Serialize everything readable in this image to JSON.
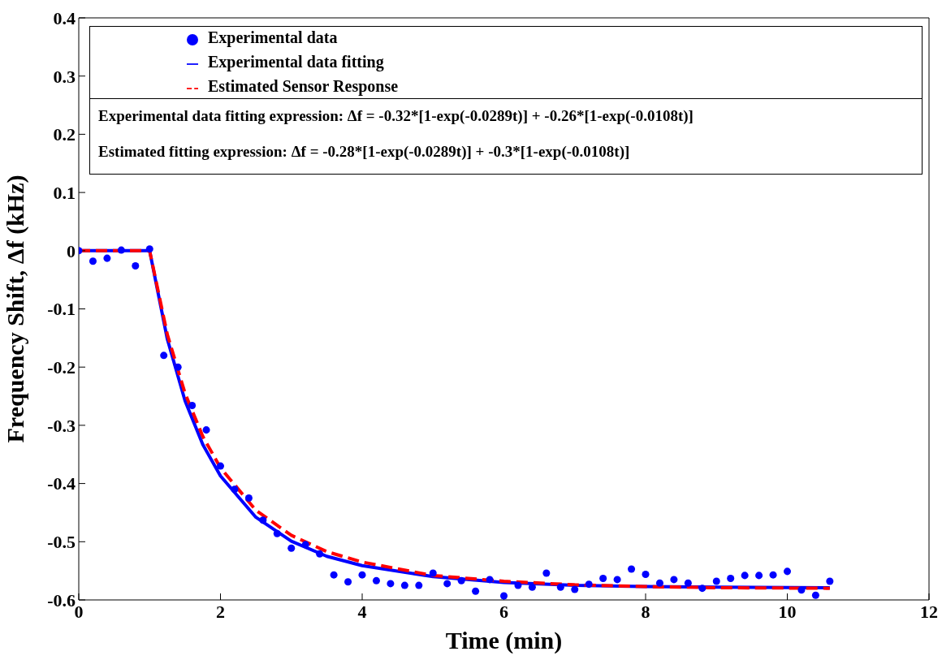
{
  "chart_data": {
    "type": "line",
    "xlabel": "Time (min)",
    "ylabel": "Frequency Shift, Δf (kHz)",
    "xlim": [
      0,
      12
    ],
    "xticks": [
      0,
      2,
      4,
      6,
      8,
      10,
      12
    ],
    "ylim": [
      -0.6,
      0.4
    ],
    "yticks": [
      -0.6,
      -0.5,
      -0.4,
      -0.3,
      -0.2,
      -0.1,
      0,
      0.1,
      0.2,
      0.3,
      0.4
    ],
    "grid": false,
    "legend": "top",
    "annotations": [
      "Experimental data fitting expression: Δf = -0.32*[1-exp(-0.0289t)] + -0.26*[1-exp(-0.0108t)]",
      "Estimated fitting expression: Δf = -0.28*[1-exp(-0.0289t)] + -0.3*[1-exp(-0.0108t)]"
    ],
    "series": [
      {
        "name": "Experimental data",
        "type": "scatter",
        "color": "#0000ff",
        "marker": "circle",
        "x": [
          0,
          0.2,
          0.4,
          0.6,
          0.8,
          1.0,
          1.2,
          1.4,
          1.6,
          1.8,
          2.0,
          2.2,
          2.4,
          2.6,
          2.8,
          3.0,
          3.2,
          3.4,
          3.6,
          3.8,
          4.0,
          4.2,
          4.4,
          4.6,
          4.8,
          5.0,
          5.2,
          5.4,
          5.6,
          5.8,
          6.0,
          6.2,
          6.4,
          6.6,
          6.8,
          7.0,
          7.2,
          7.4,
          7.6,
          7.8,
          8.0,
          8.2,
          8.4,
          8.6,
          8.8,
          9.0,
          9.2,
          9.4,
          9.6,
          9.8,
          10.0,
          10.2,
          10.4,
          10.6
        ],
        "values": [
          0,
          -0.018,
          -0.013,
          0.001,
          -0.026,
          0.003,
          -0.18,
          -0.2,
          -0.266,
          -0.308,
          -0.37,
          -0.41,
          -0.425,
          -0.463,
          -0.486,
          -0.511,
          -0.505,
          -0.521,
          -0.557,
          -0.569,
          -0.557,
          -0.567,
          -0.572,
          -0.575,
          -0.575,
          -0.554,
          -0.572,
          -0.567,
          -0.585,
          -0.565,
          -0.593,
          -0.575,
          -0.578,
          -0.554,
          -0.578,
          -0.582,
          -0.573,
          -0.563,
          -0.565,
          -0.547,
          -0.556,
          -0.571,
          -0.565,
          -0.571,
          -0.58,
          -0.568,
          -0.563,
          -0.558,
          -0.558,
          -0.557,
          -0.551,
          -0.583,
          -0.592,
          -0.568
        ]
      },
      {
        "name": "Experimental data fitting",
        "type": "line",
        "color": "#0000ff",
        "marker": "none",
        "line_style": "solid",
        "x": [
          0,
          1,
          1.25,
          1.5,
          1.75,
          2,
          2.5,
          3,
          3.5,
          4,
          5,
          6,
          7,
          8,
          9,
          10.6
        ],
        "values": [
          0,
          0,
          -0.152,
          -0.258,
          -0.333,
          -0.387,
          -0.458,
          -0.499,
          -0.525,
          -0.541,
          -0.56,
          -0.57,
          -0.575,
          -0.577,
          -0.578,
          -0.579
        ]
      },
      {
        "name": "Estimated Sensor Response",
        "type": "line",
        "color": "#ff0000",
        "marker": "none",
        "line_style": "dashed",
        "x": [
          0,
          1,
          1.25,
          1.5,
          1.75,
          2,
          2.5,
          3,
          3.5,
          4,
          5,
          6,
          7,
          8,
          9,
          10.6
        ],
        "values": [
          0,
          0,
          -0.144,
          -0.245,
          -0.319,
          -0.373,
          -0.446,
          -0.489,
          -0.517,
          -0.535,
          -0.558,
          -0.568,
          -0.574,
          -0.577,
          -0.579,
          -0.58
        ]
      }
    ]
  }
}
